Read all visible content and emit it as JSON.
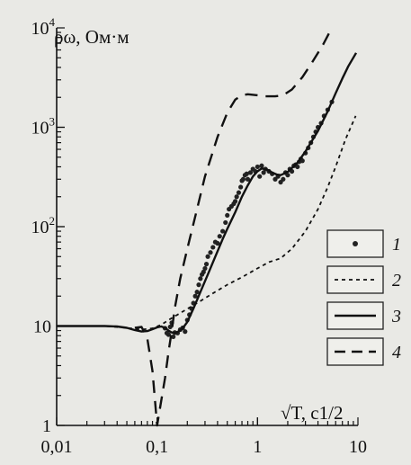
{
  "chart_data": {
    "type": "line",
    "ylabel": "ρω, Ом·м",
    "xlabel": "√T, с1/2",
    "xscale": "log",
    "yscale": "log",
    "xlim": [
      0.01,
      10
    ],
    "ylim": [
      1,
      10000
    ],
    "x_ticks": [
      {
        "value": 0.01,
        "label": "0,01"
      },
      {
        "value": 0.1,
        "label": "0,1"
      },
      {
        "value": 1,
        "label": "1"
      },
      {
        "value": 10,
        "label": "10"
      }
    ],
    "y_ticks": [
      {
        "value": 1,
        "base": "1",
        "exp": ""
      },
      {
        "value": 10,
        "base": "10",
        "exp": ""
      },
      {
        "value": 100,
        "base": "10",
        "exp": "2"
      },
      {
        "value": 1000,
        "base": "10",
        "exp": "3"
      },
      {
        "value": 10000,
        "base": "10",
        "exp": "4"
      }
    ],
    "legend_position": "right",
    "series": [
      {
        "label": "1",
        "style": "points",
        "points": [
          [
            0.12,
            9.5
          ],
          [
            0.125,
            8.5
          ],
          [
            0.13,
            8.2
          ],
          [
            0.135,
            9.8
          ],
          [
            0.14,
            10.8
          ],
          [
            0.145,
            7.8
          ],
          [
            0.15,
            8.6
          ],
          [
            0.16,
            8.5
          ],
          [
            0.17,
            9.2
          ],
          [
            0.18,
            9.6
          ],
          [
            0.19,
            8.8
          ],
          [
            0.2,
            11.5
          ],
          [
            0.21,
            13
          ],
          [
            0.22,
            15
          ],
          [
            0.23,
            17
          ],
          [
            0.24,
            20
          ],
          [
            0.25,
            22
          ],
          [
            0.26,
            26
          ],
          [
            0.27,
            30
          ],
          [
            0.28,
            33
          ],
          [
            0.29,
            35
          ],
          [
            0.3,
            38
          ],
          [
            0.31,
            42
          ],
          [
            0.32,
            50
          ],
          [
            0.34,
            55
          ],
          [
            0.36,
            62
          ],
          [
            0.38,
            70
          ],
          [
            0.4,
            68
          ],
          [
            0.42,
            80
          ],
          [
            0.45,
            90
          ],
          [
            0.48,
            110
          ],
          [
            0.5,
            130
          ],
          [
            0.52,
            150
          ],
          [
            0.55,
            160
          ],
          [
            0.58,
            170
          ],
          [
            0.6,
            180
          ],
          [
            0.62,
            200
          ],
          [
            0.65,
            220
          ],
          [
            0.68,
            250
          ],
          [
            0.7,
            290
          ],
          [
            0.72,
            300
          ],
          [
            0.75,
            330
          ],
          [
            0.78,
            340
          ],
          [
            0.8,
            300
          ],
          [
            0.85,
            350
          ],
          [
            0.9,
            380
          ],
          [
            0.95,
            360
          ],
          [
            1.0,
            400
          ],
          [
            1.05,
            320
          ],
          [
            1.1,
            410
          ],
          [
            1.15,
            350
          ],
          [
            1.2,
            380
          ],
          [
            1.3,
            360
          ],
          [
            1.4,
            340
          ],
          [
            1.5,
            300
          ],
          [
            1.6,
            320
          ],
          [
            1.7,
            280
          ],
          [
            1.8,
            300
          ],
          [
            1.9,
            350
          ],
          [
            2.0,
            330
          ],
          [
            2.1,
            380
          ],
          [
            2.2,
            360
          ],
          [
            2.3,
            410
          ],
          [
            2.4,
            420
          ],
          [
            2.5,
            400
          ],
          [
            2.6,
            450
          ],
          [
            2.7,
            480
          ],
          [
            2.8,
            460
          ],
          [
            3.0,
            550
          ],
          [
            3.2,
            620
          ],
          [
            3.4,
            700
          ],
          [
            3.6,
            800
          ],
          [
            3.8,
            900
          ],
          [
            4.0,
            1000
          ],
          [
            4.3,
            1100
          ],
          [
            4.6,
            1300
          ],
          [
            5.0,
            1500
          ],
          [
            5.5,
            1800
          ]
        ]
      },
      {
        "label": "2",
        "style": "dotted",
        "points": [
          [
            0.01,
            10
          ],
          [
            0.03,
            10
          ],
          [
            0.05,
            9.6
          ],
          [
            0.07,
            9.2
          ],
          [
            0.09,
            9.5
          ],
          [
            0.11,
            10.3
          ],
          [
            0.13,
            11.5
          ],
          [
            0.17,
            13.5
          ],
          [
            0.25,
            17
          ],
          [
            0.35,
            21
          ],
          [
            0.5,
            26
          ],
          [
            0.7,
            31
          ],
          [
            1.0,
            38
          ],
          [
            1.3,
            44
          ],
          [
            1.7,
            48
          ],
          [
            2.2,
            60
          ],
          [
            3.0,
            90
          ],
          [
            4.0,
            150
          ],
          [
            5.0,
            250
          ],
          [
            6.0,
            400
          ],
          [
            7.5,
            750
          ],
          [
            9.5,
            1300
          ]
        ]
      },
      {
        "label": "3",
        "style": "solid",
        "points": [
          [
            0.01,
            10
          ],
          [
            0.02,
            10
          ],
          [
            0.03,
            10
          ],
          [
            0.04,
            9.9
          ],
          [
            0.05,
            9.6
          ],
          [
            0.06,
            9.1
          ],
          [
            0.07,
            8.8
          ],
          [
            0.08,
            8.9
          ],
          [
            0.09,
            9.3
          ],
          [
            0.1,
            9.7
          ],
          [
            0.11,
            9.9
          ],
          [
            0.12,
            9.6
          ],
          [
            0.13,
            9.0
          ],
          [
            0.14,
            8.6
          ],
          [
            0.15,
            8.5
          ],
          [
            0.16,
            8.7
          ],
          [
            0.18,
            9.5
          ],
          [
            0.2,
            11
          ],
          [
            0.23,
            15
          ],
          [
            0.27,
            22
          ],
          [
            0.32,
            33
          ],
          [
            0.38,
            50
          ],
          [
            0.45,
            75
          ],
          [
            0.5,
            95
          ],
          [
            0.6,
            140
          ],
          [
            0.7,
            200
          ],
          [
            0.8,
            260
          ],
          [
            0.9,
            320
          ],
          [
            1.0,
            360
          ],
          [
            1.1,
            385
          ],
          [
            1.25,
            375
          ],
          [
            1.4,
            350
          ],
          [
            1.55,
            335
          ],
          [
            1.7,
            330
          ],
          [
            2.0,
            355
          ],
          [
            2.5,
            440
          ],
          [
            3.0,
            570
          ],
          [
            4.0,
            920
          ],
          [
            5.0,
            1450
          ],
          [
            6.0,
            2200
          ],
          [
            7.0,
            3100
          ],
          [
            8.0,
            4100
          ],
          [
            9.6,
            5600
          ]
        ]
      },
      {
        "label": "4",
        "style": "dashed",
        "points": [
          [
            0.06,
            9.6
          ],
          [
            0.07,
            9.8
          ],
          [
            0.08,
            7.5
          ],
          [
            0.09,
            3.5
          ],
          [
            0.1,
            1.0
          ],
          [
            0.12,
            3
          ],
          [
            0.13,
            5.5
          ],
          [
            0.14,
            9
          ],
          [
            0.15,
            15
          ],
          [
            0.17,
            30
          ],
          [
            0.2,
            60
          ],
          [
            0.25,
            150
          ],
          [
            0.3,
            320
          ],
          [
            0.4,
            800
          ],
          [
            0.5,
            1400
          ],
          [
            0.6,
            1900
          ],
          [
            0.7,
            2100
          ],
          [
            0.8,
            2150
          ],
          [
            1.0,
            2100
          ],
          [
            1.2,
            2050
          ],
          [
            1.5,
            2050
          ],
          [
            1.8,
            2100
          ],
          [
            2.2,
            2400
          ],
          [
            2.8,
            3200
          ],
          [
            3.5,
            4500
          ],
          [
            4.5,
            6800
          ],
          [
            5.2,
            9000
          ]
        ]
      }
    ]
  }
}
